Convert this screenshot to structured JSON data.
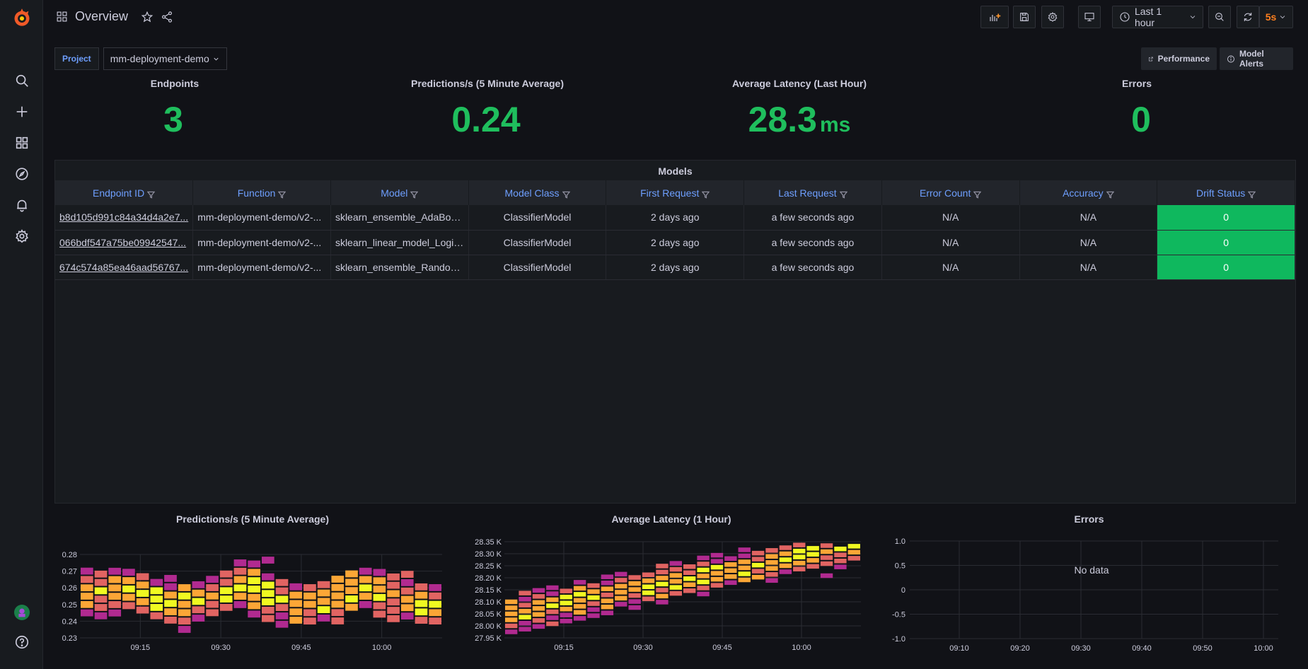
{
  "header": {
    "title": "Overview",
    "time_range": "Last 1 hour",
    "refresh": "5s"
  },
  "variables": {
    "project_label": "Project",
    "project_value": "mm-deployment-demo"
  },
  "links": {
    "performance": "Performance",
    "model_alerts": "Model Alerts"
  },
  "stats": [
    {
      "title": "Endpoints",
      "value": "3",
      "unit": ""
    },
    {
      "title": "Predictions/s (5 Minute Average)",
      "value": "0.24",
      "unit": ""
    },
    {
      "title": "Average Latency (Last Hour)",
      "value": "28.3",
      "unit": "ms"
    },
    {
      "title": "Errors",
      "value": "0",
      "unit": ""
    }
  ],
  "models": {
    "title": "Models",
    "columns": [
      "Endpoint ID",
      "Function",
      "Model",
      "Model Class",
      "First Request",
      "Last Request",
      "Error Count",
      "Accuracy",
      "Drift Status"
    ],
    "rows": [
      [
        "b8d105d991c84a34d4a2e7...",
        "mm-deployment-demo/v2-...",
        "sklearn_ensemble_AdaBoo...",
        "ClassifierModel",
        "2 days ago",
        "a few seconds ago",
        "N/A",
        "N/A",
        "0"
      ],
      [
        "066bdf547a75be09942547...",
        "mm-deployment-demo/v2-...",
        "sklearn_linear_model_Logis...",
        "ClassifierModel",
        "2 days ago",
        "a few seconds ago",
        "N/A",
        "N/A",
        "0"
      ],
      [
        "674c574a85ea46aad56767...",
        "mm-deployment-demo/v2-...",
        "sklearn_ensemble_Random...",
        "ClassifierModel",
        "2 days ago",
        "a few seconds ago",
        "N/A",
        "N/A",
        "0"
      ]
    ]
  },
  "colors": {
    "accent": "#6e9fff",
    "stat_green": "#1fbe5d",
    "drift_green": "#0fb85e",
    "refresh_orange": "#ff7f1f",
    "heat_low": "#6a00a8",
    "heat_mid1": "#b12a90",
    "heat_mid2": "#e16462",
    "heat_high": "#fca636",
    "heat_max": "#f0f921"
  },
  "chart_data": [
    {
      "type": "heatmap",
      "title": "Predictions/s (5 Minute Average)",
      "x_ticks": [
        "09:15",
        "09:30",
        "09:45",
        "10:00"
      ],
      "y_ticks": [
        "0.23",
        "0.24",
        "0.25",
        "0.26",
        "0.27",
        "0.28"
      ],
      "ylim": [
        0.23,
        0.28
      ]
    },
    {
      "type": "heatmap",
      "title": "Average Latency (1 Hour)",
      "x_ticks": [
        "09:15",
        "09:30",
        "09:45",
        "10:00"
      ],
      "y_ticks": [
        "27.95 K",
        "28.00 K",
        "28.05 K",
        "28.10 K",
        "28.15 K",
        "28.20 K",
        "28.25 K",
        "28.30 K",
        "28.35 K"
      ],
      "ylim": [
        27.95,
        28.35
      ]
    },
    {
      "type": "line",
      "title": "Errors",
      "x_ticks": [
        "09:10",
        "09:20",
        "09:30",
        "09:40",
        "09:50",
        "10:00"
      ],
      "y_ticks": [
        "-1.0",
        "-0.5",
        "0",
        "0.5",
        "1.0"
      ],
      "ylim": [
        -1,
        1
      ],
      "no_data": "No data",
      "series": []
    }
  ]
}
